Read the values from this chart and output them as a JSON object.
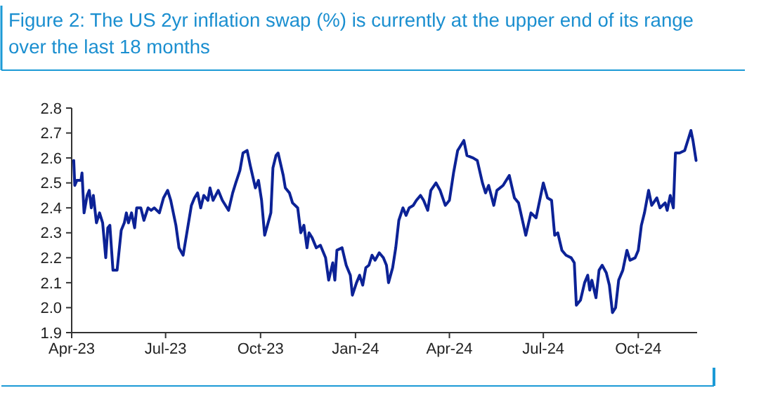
{
  "chart_data": {
    "type": "line",
    "title": "Figure 2: The US 2yr inflation swap (%) is currently at the upper end of its range over the last 18 months",
    "xlim": [
      "2023-04-01",
      "2024-11-27"
    ],
    "xticks": [
      {
        "value": "2023-04-01",
        "label": "Apr-23"
      },
      {
        "value": "2023-07-01",
        "label": "Jul-23"
      },
      {
        "value": "2023-10-01",
        "label": "Oct-23"
      },
      {
        "value": "2024-01-01",
        "label": "Jan-24"
      },
      {
        "value": "2024-04-01",
        "label": "Apr-24"
      },
      {
        "value": "2024-07-01",
        "label": "Jul-24"
      },
      {
        "value": "2024-10-01",
        "label": "Oct-24"
      }
    ],
    "ylim": [
      1.9,
      2.8
    ],
    "yticks": [
      1.9,
      {
        "value": 2,
        "label": "2.0"
      },
      2.1,
      2.2,
      2.3,
      2.4,
      2.5,
      2.6,
      2.7,
      2.8
    ],
    "grid": false,
    "marker": "none",
    "line_style": "solid",
    "series": [
      {
        "color": "#0c2296",
        "x": [
          "2023-04-03",
          "2023-04-04",
          "2023-04-06",
          "2023-04-10",
          "2023-04-11",
          "2023-04-13",
          "2023-04-16",
          "2023-04-18",
          "2023-04-20",
          "2023-04-22",
          "2023-04-25",
          "2023-04-28",
          "2023-05-01",
          "2023-05-04",
          "2023-05-06",
          "2023-05-08",
          "2023-05-11",
          "2023-05-15",
          "2023-05-19",
          "2023-05-22",
          "2023-05-24",
          "2023-05-26",
          "2023-05-29",
          "2023-06-01",
          "2023-06-03",
          "2023-06-07",
          "2023-06-10",
          "2023-06-14",
          "2023-06-17",
          "2023-06-20",
          "2023-06-25",
          "2023-06-29",
          "2023-07-03",
          "2023-07-06",
          "2023-07-11",
          "2023-07-14",
          "2023-07-18",
          "2023-07-22",
          "2023-07-26",
          "2023-07-29",
          "2023-08-01",
          "2023-08-04",
          "2023-08-07",
          "2023-08-11",
          "2023-08-13",
          "2023-08-16",
          "2023-08-21",
          "2023-08-25",
          "2023-08-31",
          "2023-09-04",
          "2023-09-07",
          "2023-09-11",
          "2023-09-14",
          "2023-09-18",
          "2023-09-21",
          "2023-09-26",
          "2023-09-29",
          "2023-10-02",
          "2023-10-05",
          "2023-10-09",
          "2023-10-11",
          "2023-10-13",
          "2023-10-16",
          "2023-10-18",
          "2023-10-23",
          "2023-10-25",
          "2023-10-29",
          "2023-11-01",
          "2023-11-06",
          "2023-11-09",
          "2023-11-12",
          "2023-11-15",
          "2023-11-17",
          "2023-11-20",
          "2023-11-24",
          "2023-11-28",
          "2023-12-03",
          "2023-12-06",
          "2023-12-10",
          "2023-12-12",
          "2023-12-14",
          "2023-12-19",
          "2023-12-23",
          "2023-12-27",
          "2023-12-29",
          "2024-01-02",
          "2024-01-05",
          "2024-01-08",
          "2024-01-11",
          "2024-01-14",
          "2024-01-17",
          "2024-01-20",
          "2024-01-24",
          "2024-01-28",
          "2024-01-31",
          "2024-02-02",
          "2024-02-06",
          "2024-02-09",
          "2024-02-12",
          "2024-02-16",
          "2024-02-19",
          "2024-02-22",
          "2024-02-26",
          "2024-02-29",
          "2024-03-04",
          "2024-03-07",
          "2024-03-11",
          "2024-03-14",
          "2024-03-19",
          "2024-03-23",
          "2024-03-28",
          "2024-04-01",
          "2024-04-05",
          "2024-04-09",
          "2024-04-15",
          "2024-04-18",
          "2024-04-24",
          "2024-04-28",
          "2024-05-03",
          "2024-05-06",
          "2024-05-09",
          "2024-05-14",
          "2024-05-17",
          "2024-05-23",
          "2024-05-29",
          "2024-06-03",
          "2024-06-07",
          "2024-06-14",
          "2024-06-19",
          "2024-06-24",
          "2024-07-01",
          "2024-07-05",
          "2024-07-09",
          "2024-07-12",
          "2024-07-15",
          "2024-07-19",
          "2024-07-23",
          "2024-07-28",
          "2024-07-31",
          "2024-08-02",
          "2024-08-06",
          "2024-08-10",
          "2024-08-13",
          "2024-08-15",
          "2024-08-17",
          "2024-08-21",
          "2024-08-24",
          "2024-08-27",
          "2024-08-31",
          "2024-09-03",
          "2024-09-06",
          "2024-09-09",
          "2024-09-12",
          "2024-09-16",
          "2024-09-20",
          "2024-09-23",
          "2024-09-28",
          "2024-10-01",
          "2024-10-04",
          "2024-10-07",
          "2024-10-11",
          "2024-10-14",
          "2024-10-19",
          "2024-10-22",
          "2024-10-27",
          "2024-10-29",
          "2024-11-01",
          "2024-11-04",
          "2024-11-06",
          "2024-11-10",
          "2024-11-15",
          "2024-11-18",
          "2024-11-21",
          "2024-11-23",
          "2024-11-26"
        ],
        "values": [
          2.59,
          2.49,
          2.51,
          2.51,
          2.54,
          2.38,
          2.45,
          2.47,
          2.4,
          2.45,
          2.34,
          2.38,
          2.34,
          2.2,
          2.32,
          2.33,
          2.15,
          2.15,
          2.31,
          2.34,
          2.38,
          2.34,
          2.38,
          2.32,
          2.4,
          2.4,
          2.35,
          2.4,
          2.39,
          2.4,
          2.38,
          2.44,
          2.47,
          2.43,
          2.33,
          2.24,
          2.21,
          2.31,
          2.41,
          2.44,
          2.46,
          2.4,
          2.45,
          2.43,
          2.48,
          2.43,
          2.47,
          2.43,
          2.39,
          2.46,
          2.5,
          2.55,
          2.62,
          2.63,
          2.57,
          2.48,
          2.51,
          2.43,
          2.29,
          2.35,
          2.38,
          2.56,
          2.61,
          2.62,
          2.53,
          2.48,
          2.46,
          2.42,
          2.4,
          2.3,
          2.33,
          2.24,
          2.3,
          2.28,
          2.24,
          2.25,
          2.2,
          2.11,
          2.18,
          2.11,
          2.23,
          2.24,
          2.17,
          2.13,
          2.05,
          2.1,
          2.13,
          2.09,
          2.16,
          2.17,
          2.21,
          2.19,
          2.22,
          2.2,
          2.17,
          2.1,
          2.16,
          2.24,
          2.35,
          2.4,
          2.37,
          2.4,
          2.41,
          2.43,
          2.45,
          2.43,
          2.39,
          2.47,
          2.5,
          2.47,
          2.41,
          2.43,
          2.54,
          2.63,
          2.67,
          2.61,
          2.6,
          2.59,
          2.5,
          2.46,
          2.49,
          2.41,
          2.47,
          2.49,
          2.53,
          2.44,
          2.42,
          2.29,
          2.38,
          2.36,
          2.5,
          2.44,
          2.43,
          2.29,
          2.3,
          2.23,
          2.21,
          2.2,
          2.18,
          2.01,
          2.03,
          2.1,
          2.13,
          2.07,
          2.11,
          2.04,
          2.15,
          2.17,
          2.14,
          2.09,
          1.98,
          2.0,
          2.11,
          2.15,
          2.23,
          2.19,
          2.2,
          2.23,
          2.33,
          2.38,
          2.47,
          2.41,
          2.44,
          2.4,
          2.42,
          2.39,
          2.45,
          2.4,
          2.62,
          2.62,
          2.63,
          2.67,
          2.71,
          2.67,
          2.59
        ]
      }
    ]
  }
}
